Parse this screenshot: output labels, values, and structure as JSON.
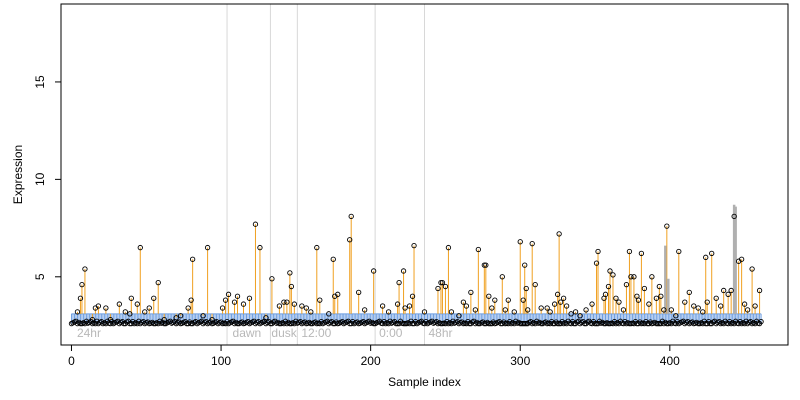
{
  "chart_data": {
    "type": "scatter",
    "title": "",
    "xlabel": "Sample index",
    "ylabel": "Expression",
    "xlim": [
      -7,
      479
    ],
    "ylim": [
      1.5,
      19
    ],
    "x_ticks": [
      0,
      100,
      200,
      300,
      400
    ],
    "y_ticks": [
      5,
      10,
      15
    ],
    "baseline": 2.6,
    "band": {
      "from": 3.1,
      "to": 2.6,
      "color": "#6e9ee0"
    },
    "spike_color": "#f0a020",
    "gray_spike_color": "#b0b0b0",
    "point_stroke": "#000000",
    "vlines": [
      104,
      133,
      151,
      203,
      236
    ],
    "annotations": [
      {
        "x": 3,
        "label": "24hr"
      },
      {
        "x": 107,
        "label": "dawn"
      },
      {
        "x": 133,
        "label": "dusk"
      },
      {
        "x": 153,
        "label": "12:00"
      },
      {
        "x": 205,
        "label": "0:00"
      },
      {
        "x": 238,
        "label": "48hr"
      }
    ],
    "gray_spikes": [
      {
        "x": 397,
        "y": 6.6
      },
      {
        "x": 399,
        "y": 4.9
      },
      {
        "x": 443,
        "y": 8.7
      },
      {
        "x": 444,
        "y": 8.6
      }
    ],
    "n_points": 462,
    "peaks": [
      {
        "x": 4,
        "y": 3.2
      },
      {
        "x": 6,
        "y": 3.9
      },
      {
        "x": 7,
        "y": 4.6
      },
      {
        "x": 9,
        "y": 5.4
      },
      {
        "x": 14,
        "y": 2.8
      },
      {
        "x": 16,
        "y": 3.4
      },
      {
        "x": 18,
        "y": 3.5
      },
      {
        "x": 23,
        "y": 3.4
      },
      {
        "x": 26,
        "y": 2.8
      },
      {
        "x": 32,
        "y": 3.6
      },
      {
        "x": 36,
        "y": 3.2
      },
      {
        "x": 39,
        "y": 3.1
      },
      {
        "x": 40,
        "y": 3.9
      },
      {
        "x": 44,
        "y": 3.6
      },
      {
        "x": 46,
        "y": 6.5
      },
      {
        "x": 49,
        "y": 3.2
      },
      {
        "x": 52,
        "y": 3.4
      },
      {
        "x": 55,
        "y": 3.9
      },
      {
        "x": 58,
        "y": 4.7
      },
      {
        "x": 62,
        "y": 2.8
      },
      {
        "x": 70,
        "y": 2.9
      },
      {
        "x": 73,
        "y": 3.0
      },
      {
        "x": 78,
        "y": 3.4
      },
      {
        "x": 80,
        "y": 3.8
      },
      {
        "x": 81,
        "y": 5.9
      },
      {
        "x": 88,
        "y": 3.0
      },
      {
        "x": 91,
        "y": 6.5
      },
      {
        "x": 94,
        "y": 2.8
      },
      {
        "x": 101,
        "y": 3.4
      },
      {
        "x": 103,
        "y": 3.8
      },
      {
        "x": 105,
        "y": 4.1
      },
      {
        "x": 109,
        "y": 3.7
      },
      {
        "x": 111,
        "y": 4.0
      },
      {
        "x": 115,
        "y": 3.6
      },
      {
        "x": 119,
        "y": 3.9
      },
      {
        "x": 123,
        "y": 7.7
      },
      {
        "x": 126,
        "y": 6.5
      },
      {
        "x": 130,
        "y": 2.9
      },
      {
        "x": 134,
        "y": 4.9
      },
      {
        "x": 139,
        "y": 3.5
      },
      {
        "x": 142,
        "y": 3.7
      },
      {
        "x": 144,
        "y": 3.7
      },
      {
        "x": 146,
        "y": 5.2
      },
      {
        "x": 147,
        "y": 4.5
      },
      {
        "x": 149,
        "y": 3.6
      },
      {
        "x": 154,
        "y": 3.5
      },
      {
        "x": 157,
        "y": 3.4
      },
      {
        "x": 160,
        "y": 3.2
      },
      {
        "x": 164,
        "y": 6.5
      },
      {
        "x": 166,
        "y": 3.8
      },
      {
        "x": 172,
        "y": 3.1
      },
      {
        "x": 175,
        "y": 5.9
      },
      {
        "x": 176,
        "y": 4.0
      },
      {
        "x": 178,
        "y": 4.1
      },
      {
        "x": 186,
        "y": 6.9
      },
      {
        "x": 187,
        "y": 8.1
      },
      {
        "x": 192,
        "y": 4.2
      },
      {
        "x": 196,
        "y": 3.3
      },
      {
        "x": 202,
        "y": 5.3
      },
      {
        "x": 208,
        "y": 3.5
      },
      {
        "x": 212,
        "y": 3.2
      },
      {
        "x": 218,
        "y": 3.6
      },
      {
        "x": 219,
        "y": 4.7
      },
      {
        "x": 222,
        "y": 5.3
      },
      {
        "x": 223,
        "y": 3.4
      },
      {
        "x": 226,
        "y": 3.5
      },
      {
        "x": 228,
        "y": 4.0
      },
      {
        "x": 229,
        "y": 6.6
      },
      {
        "x": 236,
        "y": 3.2
      },
      {
        "x": 245,
        "y": 4.4
      },
      {
        "x": 247,
        "y": 4.7
      },
      {
        "x": 248,
        "y": 4.7
      },
      {
        "x": 250,
        "y": 4.5
      },
      {
        "x": 252,
        "y": 6.5
      },
      {
        "x": 254,
        "y": 3.2
      },
      {
        "x": 259,
        "y": 3.0
      },
      {
        "x": 262,
        "y": 3.7
      },
      {
        "x": 264,
        "y": 3.5
      },
      {
        "x": 267,
        "y": 4.2
      },
      {
        "x": 270,
        "y": 3.3
      },
      {
        "x": 272,
        "y": 6.4
      },
      {
        "x": 276,
        "y": 5.6
      },
      {
        "x": 277,
        "y": 5.6
      },
      {
        "x": 279,
        "y": 4.0
      },
      {
        "x": 281,
        "y": 3.4
      },
      {
        "x": 283,
        "y": 3.8
      },
      {
        "x": 288,
        "y": 5.0
      },
      {
        "x": 290,
        "y": 3.3
      },
      {
        "x": 292,
        "y": 3.8
      },
      {
        "x": 296,
        "y": 3.2
      },
      {
        "x": 300,
        "y": 6.8
      },
      {
        "x": 302,
        "y": 3.8
      },
      {
        "x": 303,
        "y": 5.6
      },
      {
        "x": 304,
        "y": 4.4
      },
      {
        "x": 305,
        "y": 3.3
      },
      {
        "x": 308,
        "y": 6.7
      },
      {
        "x": 310,
        "y": 4.6
      },
      {
        "x": 314,
        "y": 3.4
      },
      {
        "x": 318,
        "y": 3.4
      },
      {
        "x": 320,
        "y": 3.2
      },
      {
        "x": 323,
        "y": 3.6
      },
      {
        "x": 325,
        "y": 4.1
      },
      {
        "x": 326,
        "y": 7.2
      },
      {
        "x": 327,
        "y": 3.7
      },
      {
        "x": 329,
        "y": 3.9
      },
      {
        "x": 331,
        "y": 3.5
      },
      {
        "x": 334,
        "y": 3.1
      },
      {
        "x": 337,
        "y": 3.2
      },
      {
        "x": 340,
        "y": 3.0
      },
      {
        "x": 344,
        "y": 3.3
      },
      {
        "x": 348,
        "y": 3.6
      },
      {
        "x": 351,
        "y": 5.7
      },
      {
        "x": 352,
        "y": 6.3
      },
      {
        "x": 356,
        "y": 3.9
      },
      {
        "x": 357,
        "y": 4.1
      },
      {
        "x": 359,
        "y": 4.5
      },
      {
        "x": 360,
        "y": 5.3
      },
      {
        "x": 362,
        "y": 5.1
      },
      {
        "x": 364,
        "y": 3.9
      },
      {
        "x": 366,
        "y": 3.7
      },
      {
        "x": 369,
        "y": 3.3
      },
      {
        "x": 371,
        "y": 4.6
      },
      {
        "x": 373,
        "y": 6.3
      },
      {
        "x": 374,
        "y": 5.0
      },
      {
        "x": 376,
        "y": 5.0
      },
      {
        "x": 378,
        "y": 4.0
      },
      {
        "x": 379,
        "y": 3.8
      },
      {
        "x": 381,
        "y": 6.2
      },
      {
        "x": 383,
        "y": 4.4
      },
      {
        "x": 386,
        "y": 3.6
      },
      {
        "x": 388,
        "y": 5.0
      },
      {
        "x": 391,
        "y": 3.9
      },
      {
        "x": 393,
        "y": 4.5
      },
      {
        "x": 394,
        "y": 4.0
      },
      {
        "x": 396,
        "y": 3.3
      },
      {
        "x": 398,
        "y": 7.6
      },
      {
        "x": 401,
        "y": 3.3
      },
      {
        "x": 404,
        "y": 3.0
      },
      {
        "x": 406,
        "y": 6.3
      },
      {
        "x": 410,
        "y": 3.7
      },
      {
        "x": 413,
        "y": 4.2
      },
      {
        "x": 416,
        "y": 3.5
      },
      {
        "x": 419,
        "y": 3.4
      },
      {
        "x": 422,
        "y": 3.2
      },
      {
        "x": 424,
        "y": 6.0
      },
      {
        "x": 425,
        "y": 3.7
      },
      {
        "x": 428,
        "y": 6.2
      },
      {
        "x": 431,
        "y": 3.9
      },
      {
        "x": 434,
        "y": 3.5
      },
      {
        "x": 436,
        "y": 4.3
      },
      {
        "x": 439,
        "y": 4.1
      },
      {
        "x": 441,
        "y": 4.3
      },
      {
        "x": 443,
        "y": 8.1
      },
      {
        "x": 446,
        "y": 5.8
      },
      {
        "x": 448,
        "y": 5.9
      },
      {
        "x": 450,
        "y": 3.6
      },
      {
        "x": 452,
        "y": 3.3
      },
      {
        "x": 455,
        "y": 5.4
      },
      {
        "x": 457,
        "y": 3.5
      },
      {
        "x": 460,
        "y": 4.3
      }
    ]
  }
}
